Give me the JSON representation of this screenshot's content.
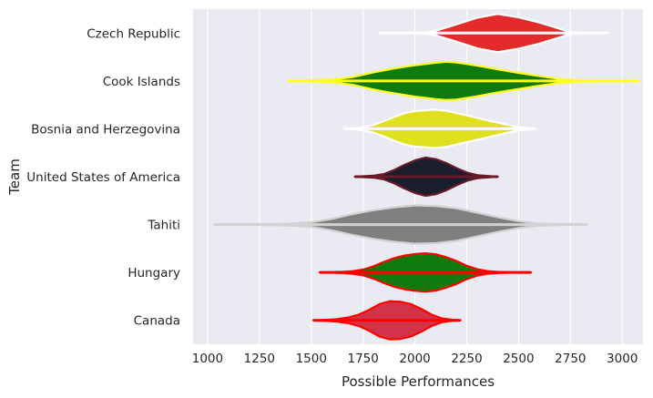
{
  "chart_data": {
    "type": "violin",
    "title": "",
    "xlabel": "Possible Performances",
    "ylabel": "Team",
    "xlim": [
      930,
      3100
    ],
    "xticks": [
      1000,
      1250,
      1500,
      1750,
      2000,
      2250,
      2500,
      2750,
      3000
    ],
    "grid": true,
    "background": "#eaeaf2",
    "gridColor": "#ffffff",
    "series": [
      {
        "team": "Czech Republic",
        "min": 1830,
        "max": 2930,
        "fill": "#e32b2b",
        "line": "#ffffff",
        "profile": [
          [
            1830,
            0.0
          ],
          [
            2000,
            0.01
          ],
          [
            2050,
            0.03
          ],
          [
            2100,
            0.12
          ],
          [
            2200,
            0.45
          ],
          [
            2300,
            0.8
          ],
          [
            2400,
            1.0
          ],
          [
            2500,
            0.82
          ],
          [
            2600,
            0.55
          ],
          [
            2700,
            0.22
          ],
          [
            2750,
            0.05
          ],
          [
            2800,
            0.01
          ],
          [
            2930,
            0.0
          ]
        ]
      },
      {
        "team": "Cook Islands",
        "min": 1390,
        "max": 3080,
        "fill": "#117a0e",
        "line": "#ffff1a",
        "profile": [
          [
            1390,
            0.0
          ],
          [
            1500,
            0.02
          ],
          [
            1600,
            0.07
          ],
          [
            1700,
            0.2
          ],
          [
            1800,
            0.45
          ],
          [
            1900,
            0.65
          ],
          [
            2000,
            0.82
          ],
          [
            2100,
            0.95
          ],
          [
            2150,
            1.0
          ],
          [
            2200,
            0.97
          ],
          [
            2300,
            0.8
          ],
          [
            2400,
            0.6
          ],
          [
            2500,
            0.42
          ],
          [
            2600,
            0.25
          ],
          [
            2700,
            0.1
          ],
          [
            2800,
            0.03
          ],
          [
            2900,
            0.01
          ],
          [
            3080,
            0.0
          ]
        ]
      },
      {
        "team": "Bosnia and Herzegovina",
        "min": 1660,
        "max": 2580,
        "fill": "#e0e01e",
        "line": "#ffffff",
        "profile": [
          [
            1660,
            0.0
          ],
          [
            1700,
            0.02
          ],
          [
            1750,
            0.08
          ],
          [
            1800,
            0.2
          ],
          [
            1850,
            0.4
          ],
          [
            1900,
            0.62
          ],
          [
            1950,
            0.82
          ],
          [
            2000,
            0.93
          ],
          [
            2100,
            1.0
          ],
          [
            2150,
            0.95
          ],
          [
            2250,
            0.7
          ],
          [
            2350,
            0.45
          ],
          [
            2450,
            0.2
          ],
          [
            2500,
            0.08
          ],
          [
            2580,
            0.0
          ]
        ]
      },
      {
        "team": "United States of America",
        "min": 1710,
        "max": 2400,
        "fill": "#1b1e2c",
        "line": "#6b1a2a",
        "profile": [
          [
            1710,
            0.0
          ],
          [
            1800,
            0.05
          ],
          [
            1850,
            0.14
          ],
          [
            1900,
            0.35
          ],
          [
            1950,
            0.62
          ],
          [
            2000,
            0.85
          ],
          [
            2050,
            1.0
          ],
          [
            2100,
            0.92
          ],
          [
            2150,
            0.72
          ],
          [
            2200,
            0.45
          ],
          [
            2250,
            0.22
          ],
          [
            2300,
            0.08
          ],
          [
            2400,
            0.0
          ]
        ]
      },
      {
        "team": "Tahiti",
        "min": 1030,
        "max": 2830,
        "fill": "#7f7f7f",
        "line": "#d2d2d2",
        "profile": [
          [
            1030,
            0.0
          ],
          [
            1200,
            0.01
          ],
          [
            1400,
            0.05
          ],
          [
            1500,
            0.12
          ],
          [
            1600,
            0.3
          ],
          [
            1700,
            0.55
          ],
          [
            1800,
            0.75
          ],
          [
            1900,
            0.9
          ],
          [
            2000,
            1.0
          ],
          [
            2100,
            0.97
          ],
          [
            2200,
            0.85
          ],
          [
            2300,
            0.62
          ],
          [
            2400,
            0.38
          ],
          [
            2500,
            0.18
          ],
          [
            2600,
            0.06
          ],
          [
            2700,
            0.02
          ],
          [
            2830,
            0.0
          ]
        ]
      },
      {
        "team": "Hungary",
        "min": 1540,
        "max": 2560,
        "fill": "#117a0e",
        "line": "#ff0000",
        "profile": [
          [
            1540,
            0.0
          ],
          [
            1600,
            0.01
          ],
          [
            1650,
            0.03
          ],
          [
            1700,
            0.07
          ],
          [
            1750,
            0.15
          ],
          [
            1800,
            0.32
          ],
          [
            1850,
            0.55
          ],
          [
            1900,
            0.75
          ],
          [
            1950,
            0.88
          ],
          [
            2000,
            0.96
          ],
          [
            2050,
            1.0
          ],
          [
            2100,
            0.95
          ],
          [
            2150,
            0.8
          ],
          [
            2200,
            0.6
          ],
          [
            2250,
            0.35
          ],
          [
            2300,
            0.17
          ],
          [
            2350,
            0.07
          ],
          [
            2400,
            0.03
          ],
          [
            2450,
            0.01
          ],
          [
            2560,
            0.0
          ]
        ]
      },
      {
        "team": "Canada",
        "min": 1510,
        "max": 2220,
        "fill": "#d33348",
        "line": "#ff0000",
        "profile": [
          [
            1510,
            0.0
          ],
          [
            1560,
            0.02
          ],
          [
            1620,
            0.06
          ],
          [
            1680,
            0.15
          ],
          [
            1730,
            0.3
          ],
          [
            1780,
            0.55
          ],
          [
            1830,
            0.85
          ],
          [
            1880,
            1.0
          ],
          [
            1930,
            0.97
          ],
          [
            1980,
            0.85
          ],
          [
            2030,
            0.6
          ],
          [
            2080,
            0.3
          ],
          [
            2130,
            0.1
          ],
          [
            2180,
            0.03
          ],
          [
            2220,
            0.0
          ]
        ]
      }
    ]
  }
}
